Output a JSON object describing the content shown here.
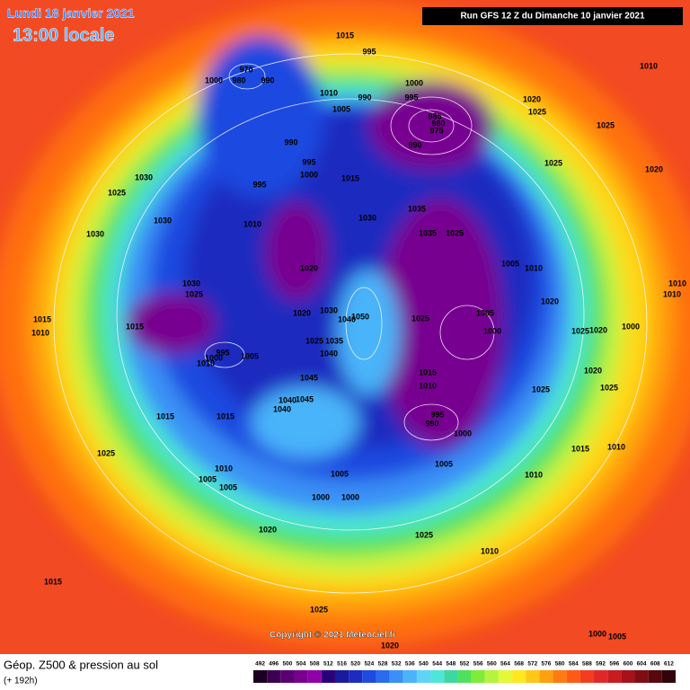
{
  "header": {
    "date": "Lundi 18 janvier 2021",
    "time": "13:00 locale",
    "run": "Run GFS 12 Z du Dimanche 10 janvier 2021"
  },
  "footer": {
    "title": "Géop. Z500 & pression au sol",
    "lead": "(+ 192h)",
    "copyright": "Copyright © 2021 Meteociel.fr"
  },
  "legend": {
    "values": [
      492,
      496,
      500,
      504,
      508,
      512,
      516,
      520,
      524,
      528,
      532,
      536,
      540,
      544,
      548,
      552,
      556,
      560,
      564,
      568,
      572,
      576,
      580,
      584,
      588,
      592,
      596,
      600,
      604,
      608,
      612
    ],
    "colors": [
      "#1a0020",
      "#3d0050",
      "#5a0070",
      "#780090",
      "#9000a8",
      "#2a0078",
      "#1a1a9c",
      "#1c2cc0",
      "#1f4ae0",
      "#2a6cf0",
      "#3a90f6",
      "#4ab4fa",
      "#60d4f8",
      "#4ee6d8",
      "#3cd8a0",
      "#50e060",
      "#80ec3a",
      "#b4f43c",
      "#e4f838",
      "#ffe820",
      "#ffc818",
      "#ffa010",
      "#ff7a10",
      "#ff5a14",
      "#f43c20",
      "#e02828",
      "#c81c20",
      "#a8101a",
      "#800c14",
      "#58080c",
      "#300408"
    ]
  },
  "isobar_labels": [
    "1015",
    "995",
    "1010",
    "1000",
    "970",
    "980",
    "990",
    "1000",
    "1010",
    "990",
    "995",
    "1020",
    "1025",
    "1005",
    "985",
    "980",
    "975",
    "990",
    "990",
    "1025",
    "995",
    "1025",
    "1020",
    "1030",
    "1000",
    "1015",
    "995",
    "1025",
    "1035",
    "1030",
    "1030",
    "1010",
    "1035",
    "1025",
    "1030",
    "1005",
    "1010",
    "1020",
    "1030",
    "1025",
    "1020",
    "1010",
    "1010",
    "1005",
    "1020",
    "1030",
    "1050",
    "1040",
    "1015",
    "1015",
    "1025",
    "1000",
    "1025",
    "1000",
    "1020",
    "1010",
    "1025",
    "1035",
    "995",
    "1000",
    "1005",
    "1010",
    "1040",
    "1045",
    "1015",
    "1010",
    "1020",
    "1025",
    "1025",
    "1045",
    "1040",
    "1040",
    "1015",
    "1015",
    "995",
    "990",
    "1000",
    "1015",
    "1010",
    "1025",
    "1005",
    "1010",
    "1005",
    "1010",
    "1005",
    "1005",
    "1000",
    "1000",
    "1025",
    "1020",
    "1010",
    "1015",
    "1025",
    "1000",
    "1005",
    "1020"
  ]
}
